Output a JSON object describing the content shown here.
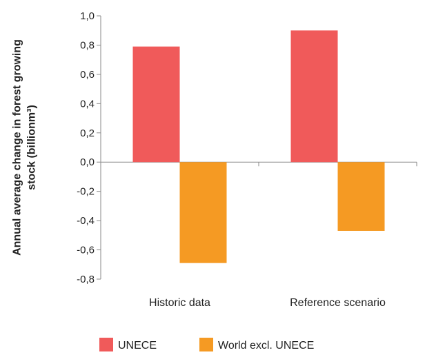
{
  "chart_data": {
    "type": "bar",
    "title": "",
    "xlabel": "",
    "ylabel": [
      "Annual average change in forest growing",
      "stock (billionm³)"
    ],
    "categories": [
      "Historic data",
      "Reference scenario"
    ],
    "series": [
      {
        "name": "UNECE",
        "color": "#f05a5a",
        "values": [
          0.79,
          0.9
        ]
      },
      {
        "name": "World excl. UNECE",
        "color": "#f59a23",
        "values": [
          -0.69,
          -0.47
        ]
      }
    ],
    "ylim": [
      -0.8,
      1.0
    ],
    "yticks": [
      1.0,
      0.8,
      0.6,
      0.4,
      0.2,
      0.0,
      -0.2,
      -0.4,
      -0.6,
      -0.8
    ],
    "ytick_labels": [
      "1,0",
      "0,8",
      "0,6",
      "0,4",
      "0,2",
      "0,0",
      "-0,2",
      "-0,4",
      "-0,6",
      "-0,8"
    ],
    "grid": false,
    "legend_position": "bottom"
  }
}
